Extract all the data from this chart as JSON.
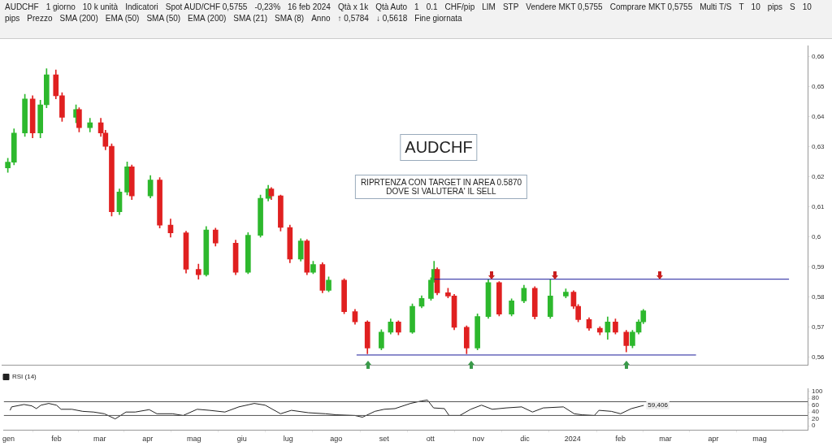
{
  "chart_data": [
    {
      "type": "candlestick",
      "title": "AUDCHF",
      "subtitle": "RIPRTENZA CON TARGET IN AREA 0.5870\nDOVE SI VALUTERA' IL SELL",
      "annotations": [
        "AUDCHF",
        "1 giorno",
        "10 k unità",
        "Indicatori",
        "Spot AUD/CHF 0,5755",
        "-0,23%",
        "16 feb 2024",
        "Qtà x 1k",
        "Qtà Auto",
        "1",
        "0.1",
        "CHF/pip",
        "LIM",
        "STP",
        "Vendere MKT 0,5755",
        "Comprare MKT 0,5755",
        "Multi T/S",
        "T",
        "10",
        "pips",
        "S",
        "10",
        "pips",
        "Prezzo",
        "SMA (200)",
        "EMA (50)",
        "SMA (50)",
        "EMA (200)",
        "SMA (21)",
        "SMA (8)",
        "Anno",
        "↑ 0,5784",
        "↓ 0,5618",
        "Fine giornata"
      ],
      "x": [
        "2023-01-02",
        "2023-01-06",
        "2023-01-13",
        "2023-01-18",
        "2023-01-23",
        "2023-01-27",
        "2023-02-02",
        "2023-02-06",
        "2023-02-15",
        "2023-02-17",
        "2023-02-24",
        "2023-03-03",
        "2023-03-06",
        "2023-03-10",
        "2023-03-15",
        "2023-03-20",
        "2023-03-23",
        "2023-04-04",
        "2023-04-10",
        "2023-04-17",
        "2023-04-27",
        "2023-05-05",
        "2023-05-10",
        "2023-05-16",
        "2023-05-29",
        "2023-06-06",
        "2023-06-14",
        "2023-06-19",
        "2023-06-21",
        "2023-06-27",
        "2023-07-03",
        "2023-07-10",
        "2023-07-14",
        "2023-07-18",
        "2023-07-24",
        "2023-07-28",
        "2023-08-07",
        "2023-08-14",
        "2023-08-22",
        "2023-08-31",
        "2023-09-06",
        "2023-09-11",
        "2023-09-20",
        "2023-09-26",
        "2023-10-02",
        "2023-10-04",
        "2023-10-06",
        "2023-10-13",
        "2023-10-17",
        "2023-10-25",
        "2023-11-01",
        "2023-11-08",
        "2023-11-15",
        "2023-11-23",
        "2023-12-01",
        "2023-12-08",
        "2023-12-18",
        "2023-12-28",
        "2024-01-02",
        "2024-01-05",
        "2024-01-12",
        "2024-01-19",
        "2024-01-24",
        "2024-01-29",
        "2024-02-05",
        "2024-02-09",
        "2024-02-13",
        "2024-02-16"
      ],
      "ohlc": [
        [
          0.623,
          0.6262,
          0.6215,
          0.6249
        ],
        [
          0.6249,
          0.636,
          0.624,
          0.6346
        ],
        [
          0.6346,
          0.6475,
          0.6335,
          0.6459
        ],
        [
          0.6459,
          0.647,
          0.633,
          0.6346
        ],
        [
          0.6346,
          0.6455,
          0.633,
          0.644
        ],
        [
          0.644,
          0.656,
          0.643,
          0.654
        ],
        [
          0.654,
          0.6556,
          0.646,
          0.647
        ],
        [
          0.647,
          0.648,
          0.6385,
          0.6398
        ],
        [
          0.6398,
          0.644,
          0.638,
          0.6424
        ],
        [
          0.6424,
          0.643,
          0.635,
          0.6364
        ],
        [
          0.6364,
          0.6395,
          0.635,
          0.638
        ],
        [
          0.638,
          0.6395,
          0.6335,
          0.6346
        ],
        [
          0.6346,
          0.6355,
          0.629,
          0.6302
        ],
        [
          0.6302,
          0.631,
          0.607,
          0.6084
        ],
        [
          0.6084,
          0.616,
          0.6075,
          0.615
        ],
        [
          0.615,
          0.625,
          0.614,
          0.6234
        ],
        [
          0.6234,
          0.624,
          0.6125,
          0.6137
        ],
        [
          0.6137,
          0.6205,
          0.613,
          0.619
        ],
        [
          0.619,
          0.6198,
          0.603,
          0.604
        ],
        [
          0.604,
          0.606,
          0.6,
          0.6014
        ],
        [
          0.6014,
          0.602,
          0.588,
          0.5893
        ],
        [
          0.5893,
          0.591,
          0.586,
          0.5875
        ],
        [
          0.5875,
          0.6035,
          0.587,
          0.6024
        ],
        [
          0.6024,
          0.603,
          0.597,
          0.598
        ],
        [
          0.598,
          0.599,
          0.5875,
          0.5883
        ],
        [
          0.5883,
          0.6015,
          0.5878,
          0.6006
        ],
        [
          0.6006,
          0.614,
          0.6,
          0.6129
        ],
        [
          0.6129,
          0.6172,
          0.612,
          0.616
        ],
        [
          0.616,
          0.6165,
          0.6125,
          0.6137
        ],
        [
          0.6137,
          0.614,
          0.602,
          0.6032
        ],
        [
          0.6032,
          0.604,
          0.5915,
          0.5927
        ],
        [
          0.5927,
          0.5995,
          0.592,
          0.5987
        ],
        [
          0.5987,
          0.5992,
          0.5875,
          0.5883
        ],
        [
          0.5883,
          0.592,
          0.5878,
          0.5909
        ],
        [
          0.5909,
          0.5915,
          0.5815,
          0.5823
        ],
        [
          0.5823,
          0.5868,
          0.5818,
          0.5857
        ],
        [
          0.5857,
          0.5862,
          0.5745,
          0.5752
        ],
        [
          0.5752,
          0.576,
          0.571,
          0.5718
        ],
        [
          0.5718,
          0.5722,
          0.5612,
          0.5631
        ],
        [
          0.5631,
          0.5692,
          0.5625,
          0.5684
        ],
        [
          0.5684,
          0.5728,
          0.5678,
          0.5718
        ],
        [
          0.5718,
          0.5722,
          0.5675,
          0.5684
        ],
        [
          0.5684,
          0.5778,
          0.568,
          0.577
        ],
        [
          0.577,
          0.5805,
          0.5765,
          0.5796
        ],
        [
          0.5796,
          0.5865,
          0.579,
          0.5857
        ],
        [
          0.5857,
          0.592,
          0.585,
          0.5893
        ],
        [
          0.5893,
          0.5898,
          0.5808,
          0.5815
        ],
        [
          0.5815,
          0.583,
          0.5798,
          0.5804
        ],
        [
          0.5804,
          0.581,
          0.5692,
          0.57
        ],
        [
          0.57,
          0.5705,
          0.5612,
          0.5631
        ],
        [
          0.5631,
          0.5745,
          0.5625,
          0.5736
        ],
        [
          0.5736,
          0.5858,
          0.573,
          0.5849
        ],
        [
          0.5849,
          0.5852,
          0.5738,
          0.5744
        ],
        [
          0.5744,
          0.5795,
          0.5738,
          0.5788
        ],
        [
          0.5788,
          0.584,
          0.5782,
          0.583
        ],
        [
          0.583,
          0.5835,
          0.5728,
          0.5736
        ],
        [
          0.5736,
          0.5858,
          0.573,
          0.5804
        ],
        [
          0.5804,
          0.5828,
          0.5798,
          0.5817
        ],
        [
          0.5817,
          0.5822,
          0.5762,
          0.577
        ],
        [
          0.577,
          0.5776,
          0.5718,
          0.5726
        ],
        [
          0.5726,
          0.5732,
          0.569,
          0.5697
        ],
        [
          0.5697,
          0.5702,
          0.5675,
          0.5684
        ],
        [
          0.5684,
          0.5735,
          0.566,
          0.5718
        ],
        [
          0.5718,
          0.5728,
          0.5678,
          0.5684
        ],
        [
          0.5684,
          0.569,
          0.5618,
          0.5639
        ],
        [
          0.5639,
          0.569,
          0.5632,
          0.5684
        ],
        [
          0.5684,
          0.5725,
          0.5678,
          0.5718
        ],
        [
          0.5718,
          0.576,
          0.5712,
          0.5755
        ]
      ],
      "colors": [
        "#2db82d",
        "#2db82d",
        "#2db82d",
        "#e02020",
        "#2db82d",
        "#2db82d",
        "#e02020",
        "#e02020",
        "#2db82d",
        "#e02020",
        "#2db82d",
        "#e02020",
        "#e02020",
        "#e02020",
        "#2db82d",
        "#2db82d",
        "#e02020",
        "#2db82d",
        "#e02020",
        "#e02020",
        "#e02020",
        "#e02020",
        "#2db82d",
        "#e02020",
        "#e02020",
        "#2db82d",
        "#2db82d",
        "#2db82d",
        "#e02020",
        "#e02020",
        "#e02020",
        "#2db82d",
        "#e02020",
        "#2db82d",
        "#e02020",
        "#2db82d",
        "#e02020",
        "#e02020",
        "#e02020",
        "#2db82d",
        "#2db82d",
        "#e02020",
        "#2db82d",
        "#2db82d",
        "#2db82d",
        "#2db82d",
        "#e02020",
        "#e02020",
        "#e02020",
        "#e02020",
        "#2db82d",
        "#2db82d",
        "#e02020",
        "#2db82d",
        "#2db82d",
        "#e02020",
        "#2db82d",
        "#2db82d",
        "#e02020",
        "#e02020",
        "#e02020",
        "#e02020",
        "#2db82d",
        "#e02020",
        "#e02020",
        "#2db82d",
        "#2db82d",
        "#2db82d"
      ],
      "series": [
        {
          "type": "line",
          "color": "#1a1a9a",
          "x": [
            "2023-10-04",
            "2024-05-20"
          ],
          "values": [
            0.586,
            0.586
          ]
        },
        {
          "type": "line",
          "color": "#1a1a9a",
          "x": [
            "2023-08-15",
            "2024-03-21"
          ],
          "values": [
            0.5608,
            0.5608
          ]
        }
      ],
      "xlim": [
        "2022-12-29",
        "2024-06-01"
      ],
      "ylim": [
        0.5575,
        0.6635
      ],
      "yticks": [
        {
          "value": 0.56,
          "label": "0,56"
        },
        {
          "value": 0.57,
          "label": "0,57"
        },
        {
          "value": 0.58,
          "label": "0,58"
        },
        {
          "value": 0.59,
          "label": "0,59"
        },
        {
          "value": 0.6,
          "label": "0,6"
        },
        {
          "value": 0.61,
          "label": "0,61"
        },
        {
          "value": 0.62,
          "label": "0,62"
        },
        {
          "value": 0.63,
          "label": "0,63"
        },
        {
          "value": 0.64,
          "label": "0,64"
        },
        {
          "value": 0.65,
          "label": "0,65"
        },
        {
          "value": 0.66,
          "label": "0,66"
        }
      ],
      "tick_labels": "y"
    },
    {
      "type": "line",
      "legend": "top left",
      "series": [
        {
          "name": "RSI (14)",
          "color": "#222222",
          "x": [
            "2023-01-02",
            "2023-01-03",
            "2023-01-11",
            "2023-01-16",
            "2023-01-19",
            "2023-01-22",
            "2023-01-27",
            "2023-02-01",
            "2023-02-04",
            "2023-02-11",
            "2023-02-18",
            "2023-02-25",
            "2023-03-04",
            "2023-03-11",
            "2023-03-18",
            "2023-03-24",
            "2023-04-02",
            "2023-04-07",
            "2023-04-17",
            "2023-04-24",
            "2023-05-03",
            "2023-05-11",
            "2023-05-21",
            "2023-05-30",
            "2023-06-09",
            "2023-06-16",
            "2023-06-26",
            "2023-07-03",
            "2023-07-14",
            "2023-07-25",
            "2023-08-01",
            "2023-08-13",
            "2023-08-18",
            "2023-08-26",
            "2023-09-01",
            "2023-09-08",
            "2023-09-18",
            "2023-09-25",
            "2023-09-29",
            "2023-10-03",
            "2023-10-10",
            "2023-10-13",
            "2023-10-20",
            "2023-10-27",
            "2023-11-03",
            "2023-11-10",
            "2023-11-19",
            "2023-11-29",
            "2023-12-06",
            "2023-12-13",
            "2023-12-26",
            "2024-01-02",
            "2024-01-07",
            "2024-01-15",
            "2024-01-18",
            "2024-01-26",
            "2024-02-01",
            "2024-02-08",
            "2024-02-16"
          ],
          "values": [
            45,
            55,
            62,
            58,
            50,
            60,
            65,
            60,
            48,
            48,
            42,
            40,
            35,
            20,
            40,
            40,
            47,
            35,
            35,
            30,
            48,
            45,
            40,
            55,
            65,
            60,
            35,
            45,
            38,
            35,
            32,
            30,
            25,
            42,
            48,
            50,
            65,
            72,
            75,
            52,
            50,
            30,
            30,
            48,
            60,
            48,
            52,
            55,
            40,
            52,
            55,
            35,
            32,
            30,
            45,
            42,
            35,
            50,
            59.406
          ]
        }
      ],
      "annotations": [
        {
          "text": "59,406",
          "x": "2024-02-16",
          "y": 59.406
        }
      ],
      "ref_lines": [
        {
          "axis": "y",
          "value": 70,
          "color": "#555555"
        },
        {
          "axis": "y",
          "value": 30,
          "color": "#555555"
        }
      ],
      "xlim": [
        "2022-12-29",
        "2024-06-01"
      ],
      "xticks": [
        {
          "value": "2023-01",
          "label": "gen"
        },
        {
          "value": "2023-02",
          "label": "feb"
        },
        {
          "value": "2023-03",
          "label": "mar"
        },
        {
          "value": "2023-04",
          "label": "apr"
        },
        {
          "value": "2023-05",
          "label": "mag"
        },
        {
          "value": "2023-06",
          "label": "giu"
        },
        {
          "value": "2023-07",
          "label": "lug"
        },
        {
          "value": "2023-08",
          "label": "ago"
        },
        {
          "value": "2023-09",
          "label": "set"
        },
        {
          "value": "2023-10",
          "label": "ott"
        },
        {
          "value": "2023-11",
          "label": "nov"
        },
        {
          "value": "2023-12",
          "label": "dic"
        },
        {
          "value": "2024-01",
          "label": "2024"
        },
        {
          "value": "2024-02",
          "label": "feb"
        },
        {
          "value": "2024-03",
          "label": "mar"
        },
        {
          "value": "2024-04",
          "label": "apr"
        },
        {
          "value": "2024-05",
          "label": "mag"
        }
      ],
      "ylim": [
        -12,
        109
      ],
      "yticks": [
        0,
        20,
        40,
        60,
        80,
        100
      ]
    }
  ]
}
